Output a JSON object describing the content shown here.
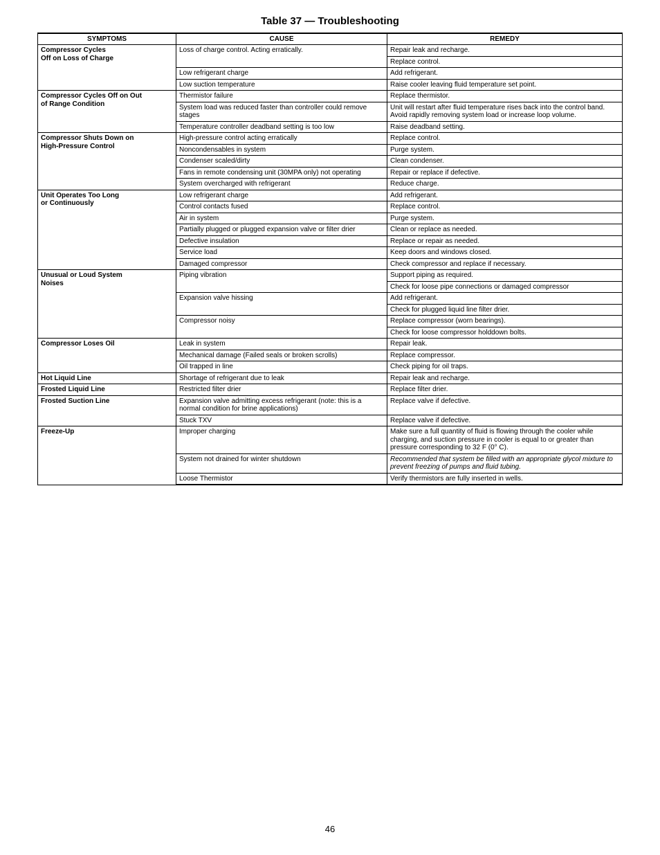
{
  "title": "Table 37 — Troubleshooting",
  "page_number": "46",
  "columns": {
    "symptoms": "SYMPTOMS",
    "cause": "CAUSE",
    "remedy": "REMEDY"
  },
  "rows": [
    {
      "s": "Compressor Cycles\nOff on Loss of Charge",
      "s_rows": 4,
      "c": "Loss of charge control. Acting erratically.",
      "c_rows": 2,
      "r": "Repair leak and recharge."
    },
    {
      "r": "Replace control."
    },
    {
      "c": "Low refrigerant charge",
      "r": "Add refrigerant."
    },
    {
      "c": "Low suction temperature",
      "r": "Raise cooler leaving fluid temperature set point."
    },
    {
      "s": "Compressor Cycles Off on Out\nof Range Condition",
      "s_rows": 3,
      "c": "Thermistor failure",
      "r": "Replace thermistor."
    },
    {
      "c": "System load was reduced faster than controller could remove stages",
      "r": "Unit will restart after fluid temperature rises back into the control band. Avoid rapidly removing system load or increase loop volume."
    },
    {
      "c": "Temperature controller deadband setting is too low",
      "r": "Raise deadband setting."
    },
    {
      "s": "Compressor Shuts Down on\nHigh-Pressure Control",
      "s_rows": 5,
      "c": "High-pressure control acting erratically",
      "r": "Replace control."
    },
    {
      "c": "Noncondensables in system",
      "r": "Purge system."
    },
    {
      "c": "Condenser scaled/dirty",
      "r": "Clean condenser."
    },
    {
      "c": "Fans in remote condensing unit (30MPA only) not operating",
      "r": "Repair or replace if defective."
    },
    {
      "c": "System overcharged with refrigerant",
      "r": "Reduce charge."
    },
    {
      "s": "Unit Operates Too Long\nor Continuously",
      "s_rows": 7,
      "c": "Low refrigerant charge",
      "r": "Add refrigerant."
    },
    {
      "c": "Control contacts fused",
      "r": "Replace control."
    },
    {
      "c": "Air in system",
      "r": "Purge system."
    },
    {
      "c": "Partially plugged or plugged expansion valve or filter drier",
      "r": "Clean or replace as needed."
    },
    {
      "c": "Defective insulation",
      "r": "Replace or repair as needed."
    },
    {
      "c": "Service load",
      "r": "Keep doors and windows closed."
    },
    {
      "c": "Damaged compressor",
      "r": "Check compressor and replace if necessary."
    },
    {
      "s": "Unusual or Loud System\nNoises",
      "s_rows": 6,
      "c": "Piping vibration",
      "c_rows": 2,
      "r": "Support piping as required."
    },
    {
      "r": "Check for loose pipe connections or damaged compressor"
    },
    {
      "c": "Expansion valve hissing",
      "c_rows": 2,
      "r": "Add refrigerant."
    },
    {
      "r": "Check for plugged liquid line filter drier."
    },
    {
      "c": "Compressor noisy",
      "c_rows": 2,
      "r": "Replace compressor (worn bearings)."
    },
    {
      "r": "Check for loose compressor holddown bolts."
    },
    {
      "s": "Compressor Loses Oil",
      "s_rows": 3,
      "c": "Leak in system",
      "r": "Repair leak."
    },
    {
      "c": "Mechanical damage (Failed seals or broken scrolls)",
      "r": "Replace compressor."
    },
    {
      "c": "Oil trapped in line",
      "r": "Check piping for oil traps."
    },
    {
      "s": "Hot Liquid Line",
      "s_rows": 1,
      "c": "Shortage of refrigerant due to leak",
      "r": "Repair leak and recharge."
    },
    {
      "s": "Frosted Liquid Line",
      "s_rows": 1,
      "c": "Restricted filter drier",
      "r": "Replace filter drier."
    },
    {
      "s": "Frosted Suction Line",
      "s_rows": 2,
      "c": "Expansion valve admitting excess refrigerant (note: this is a normal condition for brine applications)",
      "r": "Replace valve if defective."
    },
    {
      "c": "Stuck TXV",
      "r": "Replace valve if defective."
    },
    {
      "s": "Freeze-Up",
      "s_rows": 3,
      "c": "Improper charging",
      "r": "Make sure a full quantity of fluid is flowing through the cooler while charging, and suction pressure in cooler is equal to or greater than pressure corresponding to 32 F (0° C)."
    },
    {
      "c": "System not drained for winter shutdown",
      "r": "Recommended that system be filled with an appropriate glycol mixture to prevent freezing of pumps and fluid tubing.",
      "r_italic": true
    },
    {
      "c": "Loose Thermistor",
      "r": "Verify thermistors are fully inserted in wells.",
      "last": true
    }
  ]
}
